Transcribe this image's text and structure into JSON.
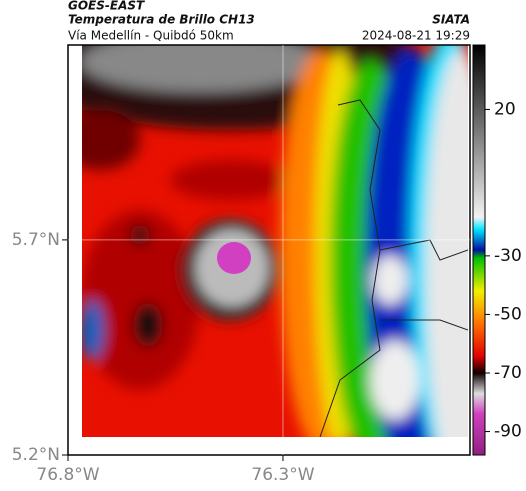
{
  "header": {
    "source": "GOES-EAST",
    "title": "Temperatura de Brillo CH13",
    "org": "SIATA",
    "subtitle": "Vía Medellín - Quibdó 50km",
    "datetime": "2024-08-21 19:29"
  },
  "map": {
    "xlim": [
      -76.8,
      -75.865
    ],
    "ylim": [
      5.2,
      6.153
    ],
    "xticks": [
      {
        "value": -76.8,
        "label": "76.8°W"
      },
      {
        "value": -76.3,
        "label": "76.3°W"
      }
    ],
    "yticks": [
      {
        "value": 5.2,
        "label": "5.2°N"
      },
      {
        "value": 5.7,
        "label": "5.7°N"
      }
    ],
    "colorbar": {
      "lim": [
        42,
        -98
      ],
      "ticks": [
        20,
        -30,
        -50,
        -70,
        -90
      ]
    }
  }
}
